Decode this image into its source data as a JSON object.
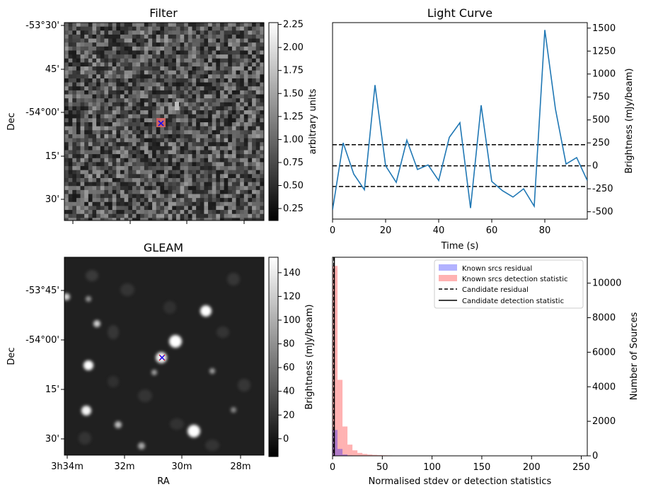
{
  "panels": {
    "filter": {
      "title": "Filter",
      "ylabel": "Dec",
      "yticks": [
        "-53°30'",
        "45'",
        "-54°00'",
        "15'",
        "30'"
      ],
      "colorbar": {
        "label": "arbitrary units",
        "ticks": [
          "2.25",
          "2.00",
          "1.75",
          "1.50",
          "1.25",
          "1.00",
          "0.75",
          "0.50",
          "0.25"
        ],
        "range": [
          0.12,
          2.27
        ]
      },
      "markers": [
        "red-square",
        "blue-x"
      ]
    },
    "gleam": {
      "title": "GLEAM",
      "xlabel": "RA",
      "ylabel": "Dec",
      "xticks": [
        "3h34m",
        "32m",
        "30m",
        "28m"
      ],
      "yticks": [
        "-53°45'",
        "-54°00'",
        "15'",
        "30'"
      ],
      "colorbar": {
        "label": "Brightness (mJy/beam)",
        "ticks": [
          "140",
          "120",
          "100",
          "80",
          "60",
          "40",
          "20",
          "0"
        ],
        "range": [
          -15,
          153
        ]
      },
      "markers": [
        "red-x",
        "blue-x"
      ]
    }
  },
  "chart_data": [
    {
      "type": "line",
      "title": "Light Curve",
      "xlabel": "Time (s)",
      "ylabel": "Brightness (mJy/beam)",
      "xlim": [
        0,
        96
      ],
      "ylim": [
        -580,
        1560
      ],
      "xticks": [
        "0",
        "20",
        "40",
        "60",
        "80"
      ],
      "yticks": [
        "1500",
        "1250",
        "1000",
        "750",
        "500",
        "250",
        "0",
        "-250",
        "-500"
      ],
      "series": [
        {
          "name": "light curve",
          "color": "#1f77b4",
          "x": [
            0,
            4,
            8,
            12,
            16,
            20,
            24,
            28,
            32,
            36,
            40,
            44,
            48,
            52,
            56,
            60,
            64,
            68,
            72,
            76,
            80,
            84,
            88,
            92,
            96
          ],
          "y": [
            -480,
            250,
            -90,
            -260,
            880,
            0,
            -180,
            280,
            -40,
            10,
            -160,
            310,
            470,
            -460,
            660,
            -170,
            -270,
            -340,
            -250,
            -440,
            1480,
            620,
            20,
            90,
            -160
          ]
        }
      ],
      "hlines": [
        {
          "y": 230,
          "style": "dashed",
          "color": "#000000"
        },
        {
          "y": 0,
          "style": "dashed",
          "color": "#000000"
        },
        {
          "y": -225,
          "style": "dashed",
          "color": "#000000"
        }
      ]
    },
    {
      "type": "bar",
      "subtype": "histogram",
      "xlabel": "Normalised stdev or detection statistics",
      "ylabel": "Number of Sources",
      "xlim": [
        0,
        256
      ],
      "ylim": [
        0,
        11500
      ],
      "xticks": [
        "0",
        "50",
        "100",
        "150",
        "200",
        "250"
      ],
      "yticks": [
        "10000",
        "8000",
        "6000",
        "4000",
        "2000",
        "0"
      ],
      "bin_width": 5,
      "series": [
        {
          "name": "Known srcs residual",
          "color": "#0000ff",
          "opacity": 0.3,
          "bin_starts": [
            0,
            5,
            10,
            15,
            20
          ],
          "counts": [
            1500,
            400,
            80,
            25,
            8
          ]
        },
        {
          "name": "Known srcs detection statistic",
          "color": "#ff0000",
          "opacity": 0.3,
          "bin_starts": [
            0,
            5,
            10,
            15,
            20,
            25,
            30,
            35,
            40,
            45,
            50,
            55,
            60,
            65,
            70,
            75,
            80,
            85,
            90,
            95,
            100,
            110,
            125,
            150,
            160,
            195,
            240
          ],
          "counts": [
            11000,
            4400,
            1700,
            650,
            320,
            170,
            110,
            75,
            55,
            40,
            30,
            25,
            20,
            16,
            14,
            12,
            10,
            8,
            7,
            6,
            5,
            4,
            3,
            4,
            3,
            3,
            2
          ]
        }
      ],
      "vlines": [
        {
          "name": "Candidate residual",
          "x": 1.3,
          "style": "dashed",
          "color": "#000000"
        },
        {
          "name": "Candidate detection statistic",
          "x": 1.8,
          "style": "solid",
          "color": "#000000"
        }
      ],
      "legend": {
        "position": "top-right",
        "entries": [
          "Known srcs residual",
          "Known srcs detection statistic",
          "Candidate residual",
          "Candidate detection statistic"
        ]
      }
    }
  ]
}
